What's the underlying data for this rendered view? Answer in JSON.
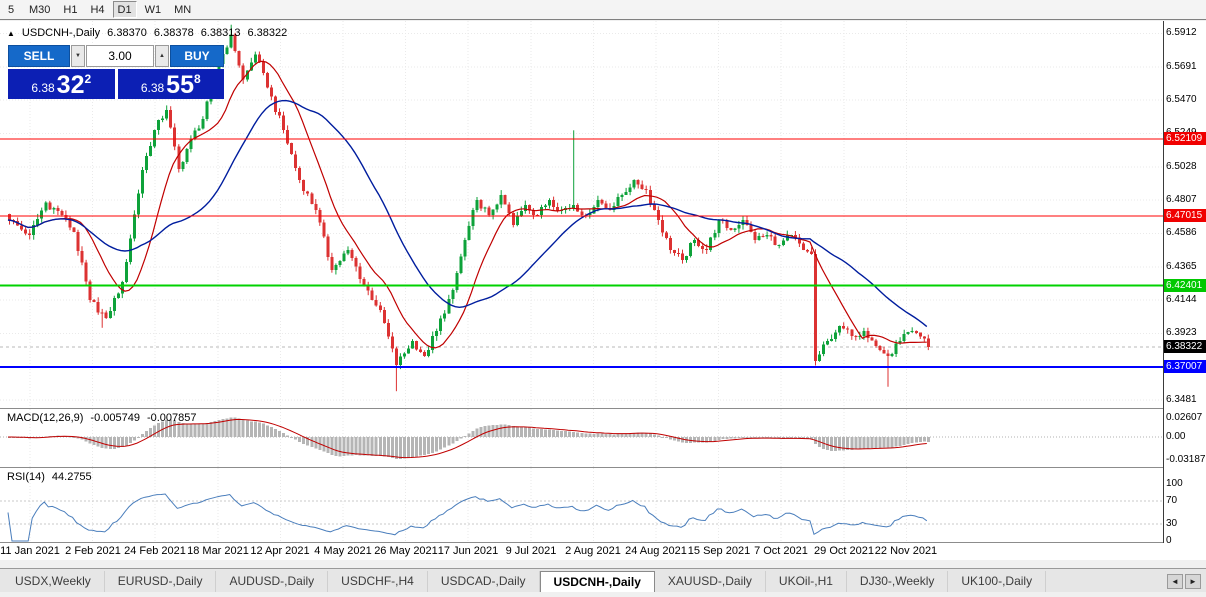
{
  "timeframe_toolbar": {
    "buttons": [
      "5",
      "M30",
      "H1",
      "H4",
      "D1",
      "W1",
      "MN"
    ],
    "active": "D1"
  },
  "chart": {
    "title": {
      "collapse_icon": "▲",
      "symbol": "USDCNH-,Daily",
      "open": "6.38370",
      "high": "6.38378",
      "low": "6.38313",
      "close": "6.38322"
    }
  },
  "trade_panel": {
    "sell_label": "SELL",
    "buy_label": "BUY",
    "volume": "3.00",
    "volume_down_icon": "▼",
    "volume_up_icon": "▲",
    "sell_price": {
      "head": "6.38",
      "big": "32",
      "pip": "2"
    },
    "buy_price": {
      "head": "6.38",
      "big": "55",
      "pip": "8"
    }
  },
  "price_axis": {
    "ticks": [
      {
        "text": "6.5912",
        "value": 6.5912
      },
      {
        "text": "6.5691",
        "value": 6.5691
      },
      {
        "text": "6.5470",
        "value": 6.547
      },
      {
        "text": "6.5249",
        "value": 6.5249
      },
      {
        "text": "6.5028",
        "value": 6.5028
      },
      {
        "text": "6.4807",
        "value": 6.4807
      },
      {
        "text": "6.4586",
        "value": 6.4586
      },
      {
        "text": "6.4365",
        "value": 6.4365
      },
      {
        "text": "6.4144",
        "value": 6.4144
      },
      {
        "text": "6.3923",
        "value": 6.3923
      },
      {
        "text": "6.3702",
        "value": 6.3702
      },
      {
        "text": "6.3481",
        "value": 6.3481
      }
    ],
    "badges": [
      {
        "text": "6.52109",
        "value": 6.52109,
        "bg": "#f00000",
        "fg": "#ffffff"
      },
      {
        "text": "6.47015",
        "value": 6.47015,
        "bg": "#f00000",
        "fg": "#ffffff"
      },
      {
        "text": "6.42401",
        "value": 6.42401,
        "bg": "#00c800",
        "fg": "#ffffff"
      },
      {
        "text": "6.38322",
        "value": 6.38322,
        "bg": "#000000",
        "fg": "#ffffff"
      },
      {
        "text": "6.37007",
        "value": 6.37007,
        "bg": "#0000ff",
        "fg": "#ffffff"
      }
    ]
  },
  "indicators": {
    "macd": {
      "name": "MACD(12,26,9)",
      "value1": "-0.005749",
      "value2": "-0.007857",
      "axis": [
        {
          "text": "0.02607",
          "value": 0.02607
        },
        {
          "text": "0.00",
          "value": 0
        },
        {
          "text": "-0.03187",
          "value": -0.03187
        }
      ]
    },
    "rsi": {
      "name": "RSI(14)",
      "value": "44.2755",
      "axis": [
        {
          "text": "100",
          "value": 100
        },
        {
          "text": "70",
          "value": 70
        },
        {
          "text": "30",
          "value": 30
        },
        {
          "text": "0",
          "value": 0
        }
      ],
      "levels": [
        70,
        30
      ]
    }
  },
  "date_axis": [
    "11 Jan 2021",
    "2 Feb 2021",
    "24 Feb 2021",
    "18 Mar 2021",
    "12 Apr 2021",
    "4 May 2021",
    "26 May 2021",
    "17 Jun 2021",
    "9 Jul 2021",
    "2 Aug 2021",
    "24 Aug 2021",
    "15 Sep 2021",
    "7 Oct 2021",
    "29 Oct 2021",
    "22 Nov 2021"
  ],
  "tabs": {
    "items": [
      {
        "label": "USDX,Weekly",
        "active": false
      },
      {
        "label": "EURUSD-,Daily",
        "active": false
      },
      {
        "label": "AUDUSD-,Daily",
        "active": false
      },
      {
        "label": "USDCHF-,H4",
        "active": false
      },
      {
        "label": "USDCAD-,Daily",
        "active": false
      },
      {
        "label": "USDCNH-,Daily",
        "active": true
      },
      {
        "label": "XAUUSD-,Daily",
        "active": false
      },
      {
        "label": "UKOil-,H1",
        "active": false
      },
      {
        "label": "DJ30-,Weekly",
        "active": false
      },
      {
        "label": "UK100-,Daily",
        "active": false
      }
    ],
    "scroll_left_icon": "◄",
    "scroll_right_icon": "►"
  },
  "colors": {
    "candle_up": "#0ea23a",
    "candle_down": "#dc3232",
    "ma_fast": "#c00000",
    "ma_slow": "#001d9e",
    "macd_histogram": "#b5b5b5",
    "macd_signal": "#c00000",
    "rsi_line": "#4a7ebc",
    "level_red": "#ff0000",
    "level_green": "#00d200",
    "level_blue": "#0000ff",
    "trade_button": "#1569c9",
    "price_panel": "#0c1fb4"
  },
  "chart_data": {
    "type": "candlestick",
    "symbol": "USDCNH",
    "period": "Daily",
    "current_bid": 6.38322,
    "last_bar": {
      "open": 6.3837,
      "high": 6.38378,
      "low": 6.38313,
      "close": 6.38322
    },
    "levels": [
      {
        "price": 6.52109,
        "color": "#ff0000",
        "width": 1
      },
      {
        "price": 6.47015,
        "color": "#ff0000",
        "width": 1
      },
      {
        "price": 6.42401,
        "color": "#00d200",
        "width": 2
      },
      {
        "price": 6.37007,
        "color": "#0000ff",
        "width": 2
      }
    ],
    "price_ticks": [
      6.5912,
      6.5691,
      6.547,
      6.5249,
      6.5028,
      6.4807,
      6.4586,
      6.4365,
      6.4144,
      6.3923,
      6.3702,
      6.3481
    ],
    "close_waypoints": [
      [
        0,
        6.4675
      ],
      [
        5,
        6.4576
      ],
      [
        9,
        6.479
      ],
      [
        13,
        6.4708
      ],
      [
        16,
        6.4595
      ],
      [
        20,
        6.4145
      ],
      [
        24,
        6.4025
      ],
      [
        28,
        6.4264
      ],
      [
        33,
        6.5006
      ],
      [
        36,
        6.5272
      ],
      [
        39,
        6.5405
      ],
      [
        42,
        6.5013
      ],
      [
        45,
        6.5212
      ],
      [
        48,
        6.5345
      ],
      [
        52,
        6.5709
      ],
      [
        55,
        6.5906
      ],
      [
        58,
        6.5607
      ],
      [
        61,
        6.5773
      ],
      [
        64,
        6.5554
      ],
      [
        68,
        6.5272
      ],
      [
        72,
        6.494
      ],
      [
        76,
        6.4741
      ],
      [
        80,
        6.4343
      ],
      [
        84,
        6.4476
      ],
      [
        88,
        6.4244
      ],
      [
        92,
        6.4078
      ],
      [
        96,
        6.3714
      ],
      [
        100,
        6.3873
      ],
      [
        103,
        6.3774
      ],
      [
        106,
        6.394
      ],
      [
        110,
        6.4211
      ],
      [
        113,
        6.4542
      ],
      [
        116,
        6.4808
      ],
      [
        119,
        6.4708
      ],
      [
        122,
        6.4841
      ],
      [
        125,
        6.4642
      ],
      [
        128,
        6.4774
      ],
      [
        131,
        6.4708
      ],
      [
        134,
        6.4808
      ],
      [
        137,
        6.4741
      ],
      [
        140,
        6.4774
      ],
      [
        143,
        6.4708
      ],
      [
        146,
        6.4808
      ],
      [
        149,
        6.4741
      ],
      [
        152,
        6.4841
      ],
      [
        155,
        6.494
      ],
      [
        158,
        6.4874
      ],
      [
        161,
        6.4675
      ],
      [
        164,
        6.4476
      ],
      [
        167,
        6.441
      ],
      [
        170,
        6.4542
      ],
      [
        173,
        6.4476
      ],
      [
        176,
        6.4675
      ],
      [
        179,
        6.4609
      ],
      [
        182,
        6.4675
      ],
      [
        185,
        6.4542
      ],
      [
        188,
        6.4576
      ],
      [
        191,
        6.4509
      ],
      [
        194,
        6.4576
      ],
      [
        197,
        6.4476
      ],
      [
        199,
        6.445
      ],
      [
        200,
        6.374
      ],
      [
        203,
        6.3873
      ],
      [
        206,
        6.3972
      ],
      [
        209,
        6.3906
      ],
      [
        212,
        6.394
      ],
      [
        215,
        6.384
      ],
      [
        218,
        6.3774
      ],
      [
        221,
        6.3873
      ],
      [
        224,
        6.394
      ],
      [
        227,
        6.389
      ],
      [
        228,
        6.38322
      ]
    ],
    "wick_events": [
      {
        "i": 23,
        "low": 6.396
      },
      {
        "i": 55,
        "high": 6.597
      },
      {
        "i": 96,
        "low": 6.354
      },
      {
        "i": 140,
        "high": 6.527
      },
      {
        "i": 200,
        "low": 6.371
      },
      {
        "i": 218,
        "low": 6.357
      }
    ],
    "moving_averages": [
      {
        "period": 13,
        "color": "#c00000"
      },
      {
        "period": 34,
        "color": "#001d9e"
      }
    ],
    "macd_params": [
      12,
      26,
      9
    ],
    "rsi_period": 14
  }
}
